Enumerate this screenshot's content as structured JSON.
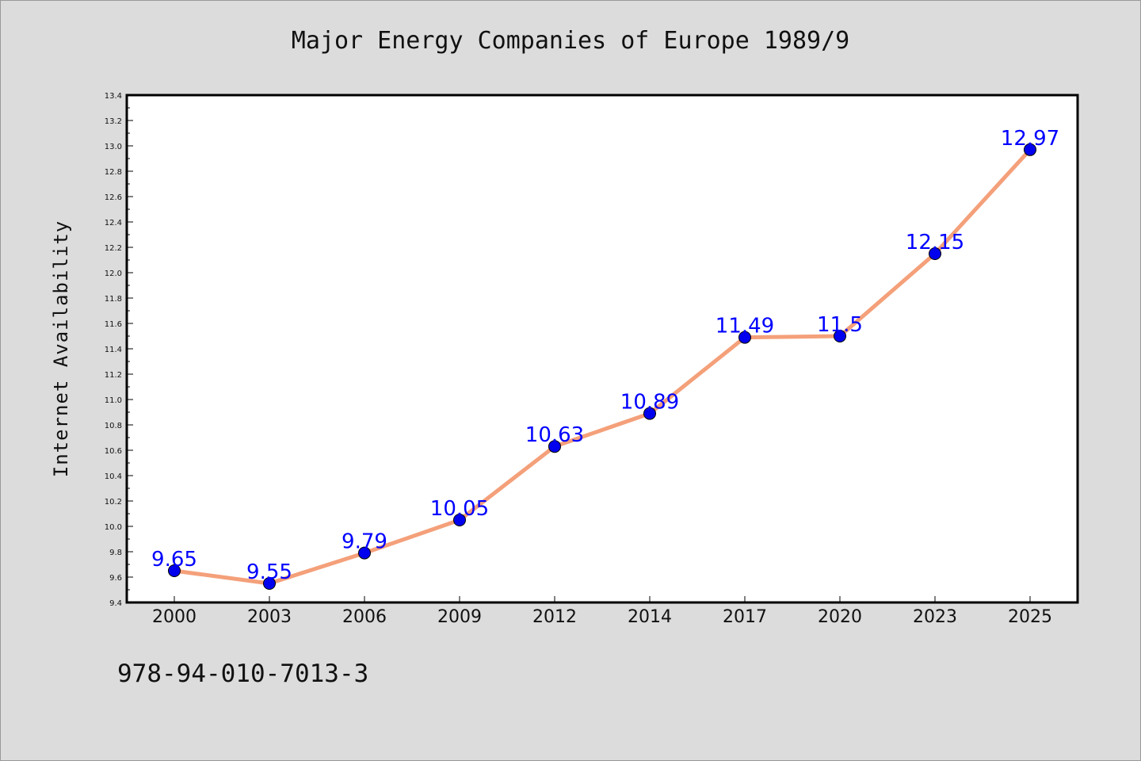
{
  "chart_data": {
    "type": "line",
    "title": "Major Energy Companies of Europe 1989/9",
    "xlabel": "",
    "ylabel": "Internet Availability",
    "categories": [
      "2000",
      "2003",
      "2006",
      "2009",
      "2012",
      "2014",
      "2017",
      "2020",
      "2023",
      "2025"
    ],
    "series": [
      {
        "values": [
          9.65,
          9.55,
          9.79,
          10.05,
          10.63,
          10.89,
          11.49,
          11.5,
          12.15,
          12.97
        ],
        "labels": [
          "9.65",
          "9.55",
          "9.79",
          "10.05",
          "10.63",
          "10.89",
          "11.49",
          "11.5",
          "12.15",
          "12.97"
        ],
        "line_color": "#f4a07a",
        "marker_color": "#0000ee",
        "label_color": "#0000ff"
      }
    ],
    "ylim": [
      9.4,
      13.4
    ],
    "y_ticks": [
      "9.4",
      "9.6",
      "9.8",
      "10.0",
      "10.2",
      "10.4",
      "10.6",
      "10.8",
      "11.0",
      "11.2",
      "11.4",
      "11.6",
      "11.8",
      "12.0",
      "12.2",
      "12.4",
      "12.6",
      "12.8",
      "13.0",
      "13.2",
      "13.4"
    ],
    "grid": false,
    "legend": "none"
  },
  "footer": {
    "isbn": "978-94-010-7013-3"
  },
  "colors": {
    "page_background": "#dcdcdc",
    "plot_background": "#ffffff",
    "axis": "#000000"
  }
}
